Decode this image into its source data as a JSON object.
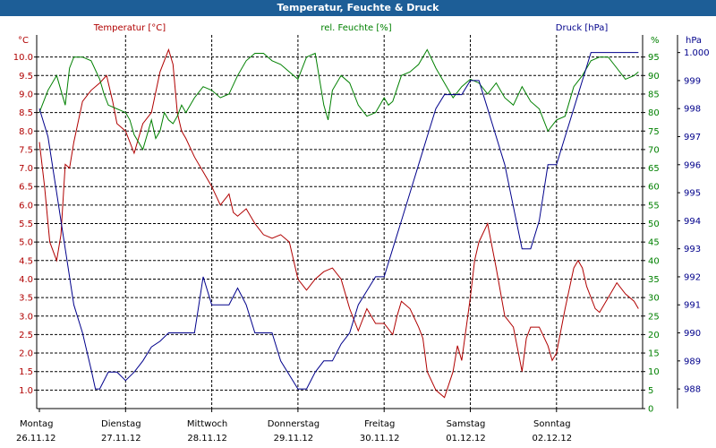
{
  "window": {
    "title": "Temperatur, Feuchte & Druck"
  },
  "colors": {
    "temperature": "#b00000",
    "humidity": "#008000",
    "pressure": "#00008b",
    "titlebar": "#1d5e97",
    "grid": "#000000"
  },
  "chart_data": {
    "type": "line",
    "grid": true,
    "x_unit": "day index (0 = Montag 26.11.12 00:00)",
    "xlim": [
      0,
      7
    ],
    "x_ticks": [
      {
        "day": "Montag",
        "date": "26.11.12"
      },
      {
        "day": "Dienstag",
        "date": "27.11.12"
      },
      {
        "day": "Mittwoch",
        "date": "28.11.12"
      },
      {
        "day": "Donnerstag",
        "date": "29.11.12"
      },
      {
        "day": "Freitag",
        "date": "30.11.12"
      },
      {
        "day": "Samstag",
        "date": "01.12.12"
      },
      {
        "day": "Sonntag",
        "date": "02.12.12"
      }
    ],
    "axes": {
      "temperature": {
        "label": "Temperatur [°C]",
        "unit": "°C",
        "ylim": [
          0.5,
          10.5
        ],
        "ticks": [
          "1.0",
          "1.5",
          "2.0",
          "2.5",
          "3.0",
          "3.5",
          "4.0",
          "4.5",
          "5.0",
          "5.5",
          "6.0",
          "6.5",
          "7.0",
          "7.5",
          "8.0",
          "8.5",
          "9.0",
          "9.5",
          "10.0"
        ]
      },
      "humidity": {
        "label": "rel. Feuchte [%]",
        "unit": "%",
        "ylim": [
          0,
          100
        ],
        "ticks": [
          "0",
          "5",
          "10",
          "15",
          "20",
          "25",
          "30",
          "35",
          "40",
          "45",
          "50",
          "55",
          "60",
          "65",
          "70",
          "75",
          "80",
          "85",
          "90",
          "95"
        ]
      },
      "pressure": {
        "label": "Druck [hPa]",
        "unit": "hPa",
        "ylim": [
          987.3,
          1000.5
        ],
        "ticks": [
          "988",
          "989",
          "990",
          "991",
          "992",
          "993",
          "994",
          "995",
          "996",
          "997",
          "998",
          "999",
          "1.000"
        ]
      }
    },
    "series": [
      {
        "name": "Temperatur [°C]",
        "axis": "temperature",
        "x": [
          0,
          0.06,
          0.12,
          0.2,
          0.25,
          0.3,
          0.35,
          0.4,
          0.5,
          0.6,
          0.7,
          0.78,
          0.85,
          0.9,
          1.0,
          1.1,
          1.15,
          1.2,
          1.3,
          1.4,
          1.5,
          1.55,
          1.6,
          1.65,
          1.7,
          1.8,
          1.9,
          2.0,
          2.1,
          2.2,
          2.25,
          2.3,
          2.4,
          2.5,
          2.6,
          2.7,
          2.8,
          2.9,
          3.0,
          3.1,
          3.2,
          3.3,
          3.4,
          3.5,
          3.6,
          3.7,
          3.8,
          3.9,
          4.0,
          4.1,
          4.15,
          4.2,
          4.3,
          4.4,
          4.45,
          4.5,
          4.6,
          4.7,
          4.8,
          4.85,
          4.9,
          5.0,
          5.05,
          5.1,
          5.2,
          5.3,
          5.4,
          5.5,
          5.6,
          5.65,
          5.7,
          5.75,
          5.8,
          5.9,
          5.95,
          6.0,
          6.1,
          6.2,
          6.25,
          6.3,
          6.35,
          6.4,
          6.45,
          6.5,
          6.6,
          6.7,
          6.8,
          6.9,
          6.95
        ],
        "values": [
          7.7,
          6.5,
          5.0,
          4.5,
          5.2,
          7.1,
          7.0,
          7.7,
          8.8,
          9.1,
          9.3,
          9.5,
          8.8,
          8.2,
          8.0,
          7.4,
          7.8,
          8.2,
          8.5,
          9.6,
          10.2,
          9.8,
          8.5,
          8.0,
          7.8,
          7.3,
          6.9,
          6.5,
          6.0,
          6.3,
          5.8,
          5.7,
          5.9,
          5.5,
          5.2,
          5.1,
          5.2,
          5.0,
          4.0,
          3.7,
          4.0,
          4.2,
          4.3,
          4.0,
          3.2,
          2.6,
          3.2,
          2.8,
          2.8,
          2.5,
          3.0,
          3.4,
          3.2,
          2.7,
          2.4,
          1.5,
          1.0,
          0.8,
          1.5,
          2.2,
          1.8,
          3.5,
          4.5,
          5.0,
          5.5,
          4.3,
          3.0,
          2.7,
          1.5,
          2.4,
          2.7,
          2.7,
          2.7,
          2.2,
          1.8,
          2.0,
          3.2,
          4.3,
          4.5,
          4.3,
          3.8,
          3.5,
          3.2,
          3.1,
          3.5,
          3.9,
          3.6,
          3.4,
          3.2
        ]
      },
      {
        "name": "rel. Feuchte [%]",
        "axis": "humidity",
        "x": [
          0,
          0.1,
          0.2,
          0.3,
          0.35,
          0.4,
          0.5,
          0.6,
          0.7,
          0.75,
          0.8,
          0.9,
          1.0,
          1.05,
          1.1,
          1.2,
          1.3,
          1.35,
          1.4,
          1.45,
          1.5,
          1.55,
          1.6,
          1.65,
          1.7,
          1.8,
          1.9,
          2.0,
          2.1,
          2.2,
          2.3,
          2.4,
          2.5,
          2.6,
          2.7,
          2.8,
          2.9,
          3.0,
          3.1,
          3.2,
          3.3,
          3.35,
          3.4,
          3.5,
          3.6,
          3.7,
          3.8,
          3.9,
          4.0,
          4.05,
          4.1,
          4.2,
          4.3,
          4.4,
          4.5,
          4.6,
          4.7,
          4.8,
          4.9,
          5.0,
          5.1,
          5.2,
          5.3,
          5.4,
          5.5,
          5.6,
          5.7,
          5.8,
          5.9,
          6.0,
          6.1,
          6.2,
          6.3,
          6.4,
          6.5,
          6.6,
          6.7,
          6.8,
          6.9,
          6.95
        ],
        "values": [
          80,
          86,
          90,
          82,
          92,
          95,
          95,
          94,
          89,
          85,
          82,
          81,
          80,
          78,
          74,
          70,
          78,
          73,
          75,
          80,
          78,
          77,
          79,
          82,
          80,
          84,
          87,
          86,
          84,
          85,
          90,
          94,
          96,
          96,
          94,
          93,
          91,
          89,
          95,
          96,
          82,
          78,
          86,
          90,
          88,
          82,
          79,
          80,
          84,
          82,
          83,
          90,
          91,
          93,
          97,
          92,
          88,
          84,
          87,
          89,
          88,
          85,
          88,
          84,
          82,
          87,
          83,
          81,
          75,
          78,
          79,
          87,
          90,
          94,
          95,
          95,
          92,
          89,
          90,
          91
        ]
      },
      {
        "name": "Druck [hPa]",
        "axis": "pressure",
        "x": [
          0,
          0.1,
          0.2,
          0.3,
          0.4,
          0.5,
          0.6,
          0.65,
          0.7,
          0.8,
          0.9,
          1.0,
          1.1,
          1.2,
          1.3,
          1.4,
          1.5,
          1.6,
          1.7,
          1.8,
          1.85,
          1.9,
          2.0,
          2.05,
          2.1,
          2.2,
          2.3,
          2.4,
          2.5,
          2.6,
          2.7,
          2.8,
          2.9,
          3.0,
          3.1,
          3.2,
          3.3,
          3.4,
          3.5,
          3.6,
          3.7,
          3.8,
          3.9,
          4.0,
          4.1,
          4.2,
          4.3,
          4.4,
          4.5,
          4.6,
          4.7,
          4.8,
          4.9,
          5.0,
          5.05,
          5.1,
          5.2,
          5.3,
          5.4,
          5.5,
          5.6,
          5.7,
          5.8,
          5.9,
          6.0,
          6.1,
          6.2,
          6.3,
          6.4,
          6.5,
          6.6,
          6.7,
          6.8,
          6.9,
          6.95
        ],
        "values": [
          998,
          997,
          995,
          993,
          991,
          990,
          988.7,
          988,
          988,
          988.6,
          988.6,
          988.3,
          988.6,
          989,
          989.5,
          989.7,
          990,
          990,
          990,
          990,
          991,
          992,
          991,
          991,
          991,
          991,
          991.6,
          991,
          990,
          990,
          990,
          989,
          988.5,
          988,
          988,
          988.6,
          989,
          989,
          989.6,
          990,
          991,
          991.5,
          992,
          992,
          993,
          994,
          995,
          996,
          997,
          998,
          998.5,
          998.5,
          998.5,
          999,
          999,
          999,
          998,
          997,
          996,
          994.5,
          993,
          993,
          994,
          996,
          996,
          997,
          998,
          999,
          1000,
          1000,
          1000,
          1000,
          1000,
          1000,
          1000
        ]
      }
    ]
  }
}
